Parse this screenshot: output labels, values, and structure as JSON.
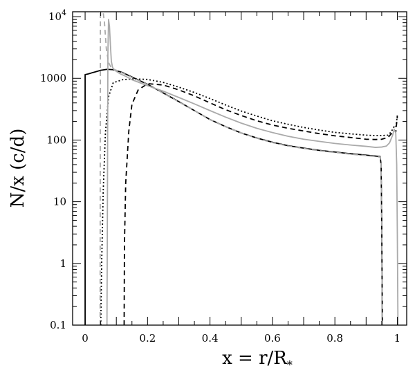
{
  "chart_data": {
    "type": "line",
    "xlabel": "x  =  r/R",
    "xlabel_sub": "*",
    "ylabel": "N/x (c/d)",
    "xlim": [
      -0.04,
      1.03
    ],
    "ylim": [
      0.1,
      12000
    ],
    "yscale": "log",
    "x_ticks": [
      {
        "value": 0,
        "label": "0"
      },
      {
        "value": 0.2,
        "label": "0.2"
      },
      {
        "value": 0.4,
        "label": "0.4"
      },
      {
        "value": 0.6,
        "label": "0.6"
      },
      {
        "value": 0.8,
        "label": "0.8"
      },
      {
        "value": 1.0,
        "label": "1"
      }
    ],
    "y_ticks": [
      {
        "value": 0.1,
        "label": "0.1"
      },
      {
        "value": 1,
        "label": "1"
      },
      {
        "value": 10,
        "label": "10"
      },
      {
        "value": 100,
        "label": "100"
      },
      {
        "value": 1000,
        "label": "1000"
      },
      {
        "value": 10000,
        "label": "10",
        "sup": "4"
      }
    ],
    "series": [
      {
        "color": "#000000",
        "dash": "",
        "width": 1.8,
        "x": [
          0.0,
          0.0,
          0.01,
          0.02,
          0.03,
          0.05,
          0.07,
          0.09,
          0.12,
          0.15,
          0.2,
          0.25,
          0.3,
          0.35,
          0.4,
          0.45,
          0.5,
          0.55,
          0.6,
          0.65,
          0.7,
          0.75,
          0.8,
          0.85,
          0.9,
          0.93,
          0.945,
          0.948,
          0.95,
          0.952
        ],
        "y": [
          0.1,
          1150,
          1180,
          1220,
          1260,
          1350,
          1400,
          1380,
          1240,
          1050,
          800,
          580,
          420,
          300,
          215,
          165,
          130,
          108,
          92,
          81,
          74,
          68,
          64,
          60,
          57,
          55,
          54,
          40,
          5,
          0.1
        ]
      },
      {
        "color": "#000000",
        "dash": "7,5",
        "width": 1.8,
        "x": [
          0.125,
          0.126,
          0.13,
          0.14,
          0.15,
          0.17,
          0.2,
          0.25,
          0.3,
          0.35,
          0.4,
          0.45,
          0.5,
          0.55,
          0.6,
          0.65,
          0.7,
          0.75,
          0.8,
          0.85,
          0.9,
          0.93,
          0.95,
          0.97,
          0.98,
          0.99,
          0.995,
          1.0
        ],
        "y": [
          0.1,
          2,
          20,
          140,
          380,
          650,
          820,
          780,
          650,
          520,
          400,
          310,
          250,
          205,
          175,
          155,
          140,
          127,
          117,
          110,
          103,
          102,
          103,
          110,
          125,
          145,
          135,
          240
        ]
      },
      {
        "color": "#000000",
        "dash": "2,3",
        "width": 1.8,
        "x": [
          0.05,
          0.053,
          0.058,
          0.065,
          0.075,
          0.09,
          0.12,
          0.15,
          0.2,
          0.25,
          0.3,
          0.35,
          0.4,
          0.45,
          0.5,
          0.55,
          0.6,
          0.65,
          0.7,
          0.75,
          0.8,
          0.85,
          0.9,
          0.93,
          0.95,
          0.97,
          0.98,
          0.99,
          0.995,
          1.0
        ],
        "y": [
          0.1,
          1,
          15,
          130,
          500,
          850,
          950,
          980,
          960,
          860,
          720,
          590,
          470,
          370,
          295,
          245,
          205,
          180,
          160,
          145,
          133,
          126,
          120,
          118,
          118,
          120,
          135,
          165,
          160,
          250
        ]
      },
      {
        "color": "#aaaaaa",
        "dash": "",
        "width": 1.8,
        "x": [
          0.07,
          0.071,
          0.073,
          0.075,
          0.078,
          0.081,
          0.084,
          0.088,
          0.095,
          0.11,
          0.13,
          0.15,
          0.2,
          0.25,
          0.3,
          0.35,
          0.4,
          0.45,
          0.5,
          0.55,
          0.6,
          0.65,
          0.7,
          0.75,
          0.8,
          0.85,
          0.9,
          0.93,
          0.95,
          0.965,
          0.975,
          0.985,
          0.99,
          0.995,
          0.998,
          1.0,
          1.002
        ],
        "y": [
          0.1,
          2,
          2500,
          9000,
          7000,
          3500,
          1900,
          1500,
          1350,
          1200,
          1080,
          950,
          760,
          620,
          490,
          385,
          300,
          235,
          188,
          155,
          132,
          115,
          103,
          95,
          88,
          83,
          79,
          76,
          77,
          80,
          90,
          120,
          150,
          130,
          40,
          3,
          0.1
        ]
      },
      {
        "color": "#aaaaaa",
        "dash": "7,5",
        "width": 1.8,
        "x": [
          0.048,
          0.049,
          0.05,
          0.052,
          0.054,
          0.058,
          0.062,
          0.068,
          0.075,
          0.085,
          0.1,
          0.12,
          0.15,
          0.2,
          0.25,
          0.3,
          0.35,
          0.4,
          0.45,
          0.5,
          0.55,
          0.6,
          0.65,
          0.7,
          0.75,
          0.8,
          0.85,
          0.9,
          0.93,
          0.945,
          0.948,
          0.95,
          0.952
        ],
        "y": [
          0.1,
          11500,
          11500,
          11500,
          11500,
          11500,
          8000,
          3000,
          1800,
          1450,
          1350,
          1220,
          1030,
          790,
          575,
          415,
          300,
          215,
          165,
          130,
          107,
          91,
          80,
          73,
          67,
          63,
          59,
          56,
          54,
          53,
          40,
          5,
          0.1
        ]
      }
    ]
  }
}
